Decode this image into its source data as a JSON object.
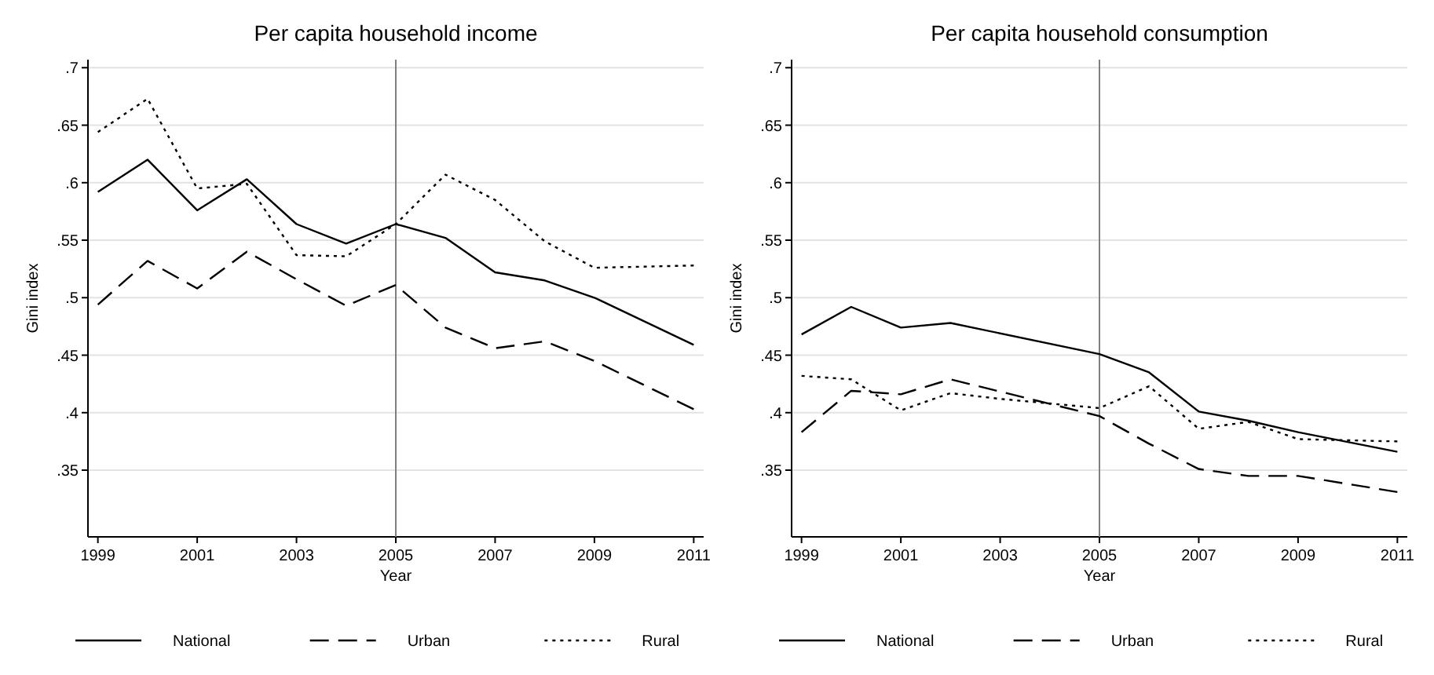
{
  "chart_data": [
    {
      "type": "line",
      "title": "Per capita household income",
      "xlabel": "Year",
      "ylabel": "Gini index",
      "xlim": [
        1998.8,
        2011.2
      ],
      "ylim": [
        0.292,
        0.707
      ],
      "xticks": [
        1999,
        2001,
        2003,
        2005,
        2007,
        2009,
        2011
      ],
      "yticks": [
        {
          "value": 0.35,
          "label": ".35"
        },
        {
          "value": 0.4,
          "label": ".4"
        },
        {
          "value": 0.45,
          "label": ".45"
        },
        {
          "value": 0.5,
          "label": ".5"
        },
        {
          "value": 0.55,
          "label": ".55"
        },
        {
          "value": 0.6,
          "label": ".6"
        },
        {
          "value": 0.65,
          "label": ".65"
        },
        {
          "value": 0.7,
          "label": ".7"
        }
      ],
      "grid": "y",
      "legend": "bottom",
      "ref_lines": [
        {
          "axis": "x",
          "value": 2005,
          "color": "#808080"
        }
      ],
      "series": [
        {
          "name": "National",
          "color": "#000000",
          "line_style": "solid",
          "x": [
            1999,
            2000,
            2001,
            2002,
            2003,
            2004,
            2005,
            2006,
            2007,
            2008,
            2009,
            2011
          ],
          "values": [
            0.592,
            0.62,
            0.576,
            0.603,
            0.564,
            0.547,
            0.564,
            0.552,
            0.522,
            0.515,
            0.5,
            0.459
          ]
        },
        {
          "name": "Urban",
          "color": "#000000",
          "line_style": "dashed",
          "x": [
            1999,
            2000,
            2001,
            2002,
            2003,
            2004,
            2005,
            2006,
            2007,
            2008,
            2009,
            2011
          ],
          "values": [
            0.494,
            0.532,
            0.508,
            0.54,
            0.516,
            0.493,
            0.511,
            0.474,
            0.456,
            0.462,
            0.445,
            0.403
          ]
        },
        {
          "name": "Rural",
          "color": "#000000",
          "line_style": "dotted",
          "x": [
            1999,
            2000,
            2001,
            2002,
            2003,
            2004,
            2005,
            2006,
            2007,
            2008,
            2009,
            2011
          ],
          "values": [
            0.644,
            0.673,
            0.595,
            0.599,
            0.537,
            0.536,
            0.564,
            0.607,
            0.585,
            0.549,
            0.526,
            0.528
          ]
        }
      ]
    },
    {
      "type": "line",
      "title": "Per capita household consumption",
      "xlabel": "Year",
      "ylabel": "Gini index",
      "xlim": [
        1998.8,
        2011.2
      ],
      "ylim": [
        0.292,
        0.707
      ],
      "xticks": [
        1999,
        2001,
        2003,
        2005,
        2007,
        2009,
        2011
      ],
      "yticks": [
        {
          "value": 0.35,
          "label": ".35"
        },
        {
          "value": 0.4,
          "label": ".4"
        },
        {
          "value": 0.45,
          "label": ".45"
        },
        {
          "value": 0.5,
          "label": ".5"
        },
        {
          "value": 0.55,
          "label": ".55"
        },
        {
          "value": 0.6,
          "label": ".6"
        },
        {
          "value": 0.65,
          "label": ".65"
        },
        {
          "value": 0.7,
          "label": ".7"
        }
      ],
      "grid": "y",
      "legend": "bottom",
      "ref_lines": [
        {
          "axis": "x",
          "value": 2005,
          "color": "#808080"
        }
      ],
      "series": [
        {
          "name": "National",
          "color": "#000000",
          "line_style": "solid",
          "x": [
            1999,
            2000,
            2001,
            2002,
            2005,
            2006,
            2007,
            2008,
            2009,
            2011
          ],
          "values": [
            0.468,
            0.492,
            0.474,
            0.478,
            0.451,
            0.435,
            0.401,
            0.393,
            0.383,
            0.366
          ]
        },
        {
          "name": "Urban",
          "color": "#000000",
          "line_style": "dashed",
          "x": [
            1999,
            2000,
            2001,
            2002,
            2005,
            2006,
            2007,
            2008,
            2009,
            2011
          ],
          "values": [
            0.383,
            0.419,
            0.416,
            0.429,
            0.397,
            0.373,
            0.351,
            0.345,
            0.345,
            0.331
          ]
        },
        {
          "name": "Rural",
          "color": "#000000",
          "line_style": "dotted",
          "x": [
            1999,
            2000,
            2001,
            2002,
            2003,
            2005,
            2006,
            2007,
            2008,
            2009,
            2011
          ],
          "values": [
            0.432,
            0.429,
            0.402,
            0.417,
            0.412,
            0.404,
            0.423,
            0.386,
            0.392,
            0.377,
            0.375
          ]
        }
      ]
    }
  ]
}
